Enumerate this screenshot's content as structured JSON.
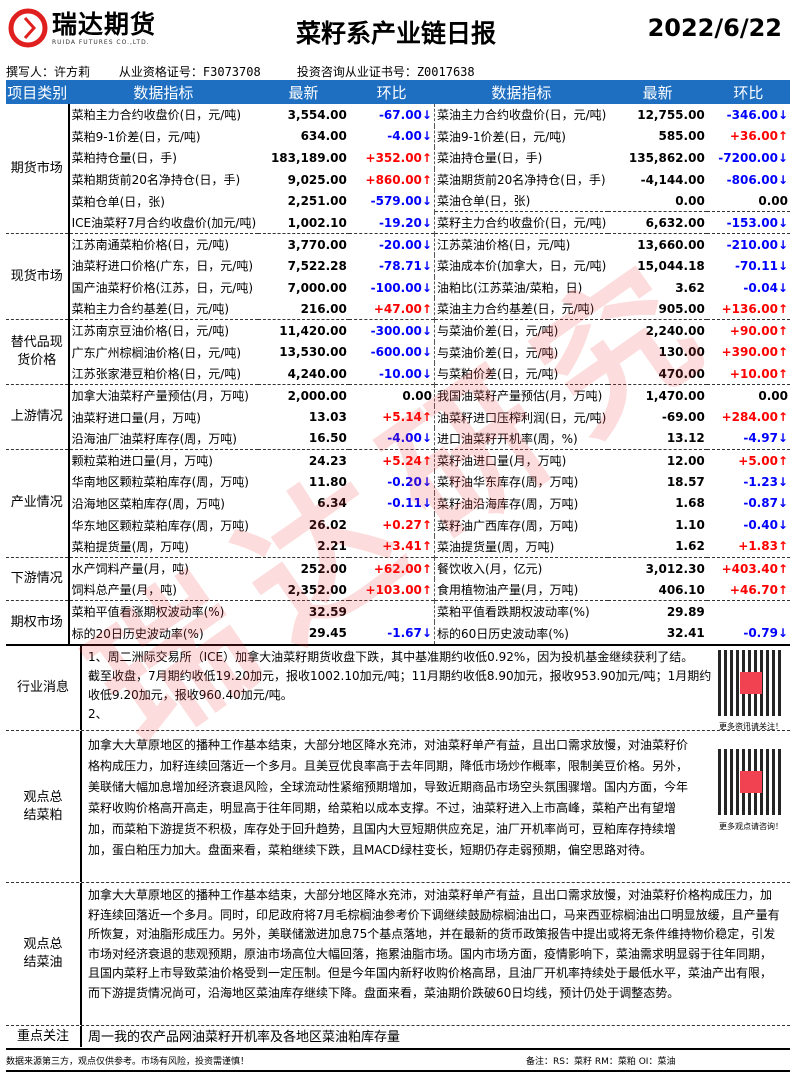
{
  "header": {
    "logo_cn": "瑞达期货",
    "logo_en": "RUIDA FUTURES CO.,LTD.",
    "title": "菜籽系产业链日报",
    "date": "2022/6/22",
    "author": "撰写人：许方莉    从业资格证号：F3073708     投资咨询从业证书号：Z0017638"
  },
  "columns": [
    "项目类别",
    "数据指标",
    "最新",
    "环比",
    "数据指标",
    "最新",
    "环比"
  ],
  "colors": {
    "header_bg": "#1e6fc2",
    "up": "#ff0000",
    "down": "#0000ff"
  },
  "groups": [
    {
      "category": "期货市场",
      "rows": [
        [
          "菜粕主力合约收盘价(日，元/吨)",
          "3,554.00",
          "-67.00↓",
          "菜油主力合约收盘价(日，元/吨)",
          "12,755.00",
          "-346.00↓"
        ],
        [
          "菜粕9-1价差(日，元/吨)",
          "634.00",
          "-4.00↓",
          "菜油9-1价差(日，元/吨)",
          "585.00",
          "+36.00↑"
        ],
        [
          "菜粕持仓量(日，手)",
          "183,189.00",
          "+352.00↑",
          "菜油持仓量(日，手)",
          "135,862.00",
          "-7200.00↓"
        ],
        [
          "菜粕期货前20名净持仓(日，手)",
          "9,025.00",
          "+860.00↑",
          "菜油期货前20名净持仓(日，手)",
          "-4,144.00",
          "-806.00↓"
        ],
        [
          "菜粕仓单(日，张)",
          "2,251.00",
          "-579.00↓",
          "菜油仓单(日，张)",
          "0.00",
          "0.00"
        ],
        [
          "ICE油菜籽7月合约收盘价(加元/吨)",
          "1,002.10",
          "-19.20↓",
          "菜籽主力合约收盘价(日，元/吨)",
          "6,632.00",
          "-153.00↓"
        ]
      ]
    },
    {
      "category": "现货市场",
      "rows": [
        [
          "江苏南通菜粕价格(日，元/吨)",
          "3,770.00",
          "-20.00↓",
          "江苏菜油价格(日，元/吨)",
          "13,660.00",
          "-210.00↓"
        ],
        [
          "油菜籽进口价格(广东，日，元/吨)",
          "7,522.28",
          "-78.71↓",
          "菜油成本价(加拿大，日，元/吨)",
          "15,044.18",
          "-70.11↓"
        ],
        [
          "国产油菜籽价格(江苏，日，元/吨)",
          "7,000.00",
          "-100.00↓",
          "油粕比(江苏菜油/菜粕，日)",
          "3.62",
          "-0.04↓"
        ],
        [
          "菜粕主力合约基差(日，元/吨)",
          "216.00",
          "+47.00↑",
          "菜油主力合约基差(日，元/吨)",
          "905.00",
          "+136.00↑"
        ]
      ]
    },
    {
      "category": "替代品现货价格",
      "rows": [
        [
          "江苏南京豆油价格(日，元/吨)",
          "11,420.00",
          "-300.00↓",
          "与菜油价差(日，元/吨)",
          "2,240.00",
          "+90.00↑"
        ],
        [
          "广东广州棕榈油价格(日，元/吨)",
          "13,530.00",
          "-600.00↓",
          "与菜油价差(日，元/吨)",
          "130.00",
          "+390.00↑"
        ],
        [
          "江苏张家港豆粕价格(日，元/吨)",
          "4,240.00",
          "-10.00↓",
          "与菜粕价差(日，元/吨)",
          "470.00",
          "+10.00↑"
        ]
      ]
    },
    {
      "category": "上游情况",
      "rows": [
        [
          "加拿大油菜籽产量预估(月，万吨)",
          "2,000.00",
          "0.00",
          "我国油菜籽产量预估(月，万吨)",
          "1,470.00",
          "0.00"
        ],
        [
          "油菜籽进口量(月，万吨)",
          "13.03",
          "+5.14↑",
          "油菜籽进口压榨利润(日，元/吨)",
          "-69.00",
          "+284.00↑"
        ],
        [
          "沿海油厂油菜籽库存(周，万吨)",
          "16.50",
          "-4.00↓",
          "进口油菜籽开机率(周，%)",
          "13.12",
          "-4.97↓"
        ]
      ]
    },
    {
      "category": "产业情况",
      "rows": [
        [
          "颗粒菜粕进口量(月，万吨)",
          "24.23",
          "+5.24↑",
          "菜籽油进口量(月，万吨)",
          "12.00",
          "+5.00↑"
        ],
        [
          "华南地区颗粒菜粕库存(周，万吨)",
          "11.80",
          "-0.20↓",
          "菜籽油华东库存(周，万吨)",
          "18.57",
          "-1.23↓"
        ],
        [
          "沿海地区菜粕库存(周，万吨)",
          "6.34",
          "-0.11↓",
          "菜籽油沿海库存(周，万吨)",
          "1.68",
          "-0.87↓"
        ],
        [
          "华东地区颗粒菜粕库存(周，万吨)",
          "26.02",
          "+0.27↑",
          "菜籽油广西库存(周，万吨)",
          "1.10",
          "-0.40↓"
        ],
        [
          "菜粕提货量(周，万吨)",
          "2.21",
          "+3.41↑",
          "菜油提货量(周，万吨)",
          "1.62",
          "+1.83↑"
        ]
      ]
    },
    {
      "category": "下游情况",
      "rows": [
        [
          "水产饲料产量(月，吨)",
          "252.00",
          "+62.00↑",
          "餐饮收入(月，亿元)",
          "3,012.30",
          "+403.40↑"
        ],
        [
          "饲料总产量(月，吨)",
          "2,352.00",
          "+103.00↑",
          "食用植物油产量(月，万吨)",
          "406.10",
          "+46.70↑"
        ]
      ]
    },
    {
      "category": "期权市场",
      "rows": [
        [
          "菜粕平值看涨期权波动率(%)",
          "32.59",
          "",
          "菜粕平值看跌期权波动率(%)",
          "29.89",
          ""
        ],
        [
          "标的20日历史波动率(%)",
          "29.45",
          "-1.67↓",
          "标的60日历史波动率(%)",
          "32.41",
          "-0.79↓"
        ]
      ]
    }
  ],
  "news": {
    "label": "行业消息",
    "lines": [
      "1、周二洲际交易所（ICE）加拿大油菜籽期货收盘下跌，其中基准期约收低0.92%，因为投机基金继续获利了结。",
      "截至收盘，7月期约收低19.20加元，报收1002.10加元/吨；11月期约收低8.90加元，报收953.90加元/吨；1月期约",
      "收低9.20加元，报收960.40加元/吨。",
      "2、"
    ],
    "qr_caption": "更多资讯请关注！"
  },
  "meal_view": {
    "label": "观点总结菜粕",
    "lines": [
      "加拿大大草原地区的播种工作基本结束，大部分地区降水充沛，对油菜籽单产有益，且出口需求放慢，对油菜籽价",
      "格构成压力，加籽连续回落近一个多月。且美豆优良率高于去年同期，降低市场炒作概率，限制美豆价格。另外，",
      "美联储大幅加息增加经济衰退风险，全球流动性紧缩预期增加，导致近期商品市场空头氛围骤增。国内方面，今年",
      "菜籽收购价格高开高走，明显高于往年同期，给菜粕以成本支撑。不过，油菜籽进入上市高峰，菜粕产出有望增",
      "加，而菜粕下游提货不积极，库存处于回升趋势，且国内大豆短期供应充足，油厂开机率尚可，豆粕库存持续增",
      "加，蛋白粕压力加大。盘面来看，菜粕继续下跌，且MACD绿柱变长，短期仍存走弱预期，偏空思路对待。"
    ],
    "qr_caption": "更多观点请咨询！"
  },
  "oil_view": {
    "label": "观点总结菜油",
    "lines": [
      "加拿大大草原地区的播种工作基本结束，大部分地区降水充沛，对油菜籽单产有益，且出口需求放慢，对油菜籽价格构成压力，加",
      "籽连续回落近一个多月。同时，印尼政府将7月毛棕榈油参考价下调继续鼓励棕榈油出口，马来西亚棕榈油出口明显放缓，且产量有",
      "所恢复，对油脂形成压力。另外，美联储激进加息75个基点落地，并在最新的货币政策报告中提出或将无条件维持物价稳定，引发",
      "市场对经济衰退的悲观预期，原油市场高位大幅回落，拖累油脂市场。国内市场方面，疫情影响下，菜油需求明显弱于往年同期，",
      "且国内菜籽上市导致菜油价格受到一定压制。但是今年国内新籽收购价格高昂，且油厂开机率持续处于最低水平，菜油产出有限，",
      "而下游提货情况尚可，沿海地区菜油库存继续下降。盘面来看，菜油期价跌破60日均线，预计仍处于调整态势。"
    ]
  },
  "focus": {
    "label": "重点关注",
    "text": "周一我的农产品网油菜籽开机率及各地区菜油粕库存量"
  },
  "footer": {
    "disclaimer": "数据来源第三方，观点仅供参考。市场有风险，投资需谨慎！",
    "note": "备注：RS：菜籽  RM：菜粕  OI：菜油"
  },
  "watermark": "瑞达研究"
}
